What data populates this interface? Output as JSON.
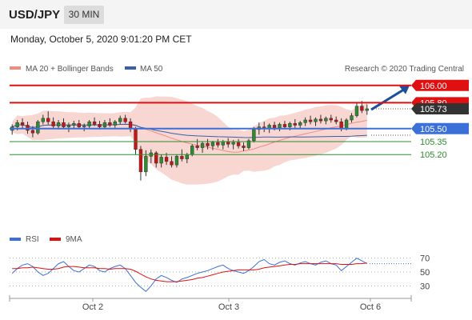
{
  "header": {
    "symbol": "USD/JPY",
    "timeframe": "30 MIN"
  },
  "datetime": "Monday, October 5, 2020 9:01:20 PM CET",
  "legend": {
    "bollinger": "MA 20 + Bollinger Bands",
    "ma50": "MA 50",
    "credit": "Research © 2020 Trading Central"
  },
  "rsi_legend": {
    "rsi": "RSI",
    "ma9": "9MA"
  },
  "colors": {
    "resistance": "#e01010",
    "support_main": "#3a70d8",
    "support_minor": "#2e8b2e",
    "price_tag_dark": "#333333",
    "bollinger_fill": "#f5c9c4",
    "ma20": "#f28a80",
    "ma50": "#3a5ea8",
    "candle_up": "#2e8b2e",
    "candle_down": "#c81414",
    "arrow": "#1f4e9a",
    "rsi": "#3a70d8",
    "rsi_ma9": "#e01010"
  },
  "chart_data": {
    "type": "candlestick",
    "symbol": "USD/JPY",
    "interval": "30 MIN",
    "x_ticks": [
      "Oct 2",
      "Oct 3",
      "Oct 6"
    ],
    "ylim": [
      104.6,
      106.1
    ],
    "levels": [
      {
        "label": "106.00",
        "value": 106.0,
        "kind": "resistance"
      },
      {
        "label": "105.80",
        "value": 105.8,
        "kind": "resistance"
      },
      {
        "label": "105.73",
        "value": 105.73,
        "kind": "last"
      },
      {
        "label": "105.50",
        "value": 105.5,
        "kind": "support"
      },
      {
        "label": "105.35",
        "value": 105.35,
        "kind": "support-minor"
      },
      {
        "label": "105.20",
        "value": 105.2,
        "kind": "support-minor"
      }
    ],
    "candles": [
      [
        105.48,
        105.55,
        105.43,
        105.52
      ],
      [
        105.52,
        105.6,
        105.48,
        105.57
      ],
      [
        105.57,
        105.62,
        105.5,
        105.54
      ],
      [
        105.54,
        105.58,
        105.44,
        105.48
      ],
      [
        105.48,
        105.53,
        105.4,
        105.45
      ],
      [
        105.45,
        105.6,
        105.43,
        105.58
      ],
      [
        105.58,
        105.66,
        105.55,
        105.62
      ],
      [
        105.62,
        105.7,
        105.55,
        105.58
      ],
      [
        105.58,
        105.63,
        105.5,
        105.53
      ],
      [
        105.53,
        105.6,
        105.49,
        105.57
      ],
      [
        105.57,
        105.62,
        105.5,
        105.52
      ],
      [
        105.52,
        105.57,
        105.46,
        105.54
      ],
      [
        105.54,
        105.59,
        105.5,
        105.56
      ],
      [
        105.56,
        105.6,
        105.5,
        105.52
      ],
      [
        105.52,
        105.56,
        105.47,
        105.53
      ],
      [
        105.53,
        105.6,
        105.5,
        105.58
      ],
      [
        105.58,
        105.63,
        105.53,
        105.55
      ],
      [
        105.55,
        105.59,
        105.49,
        105.52
      ],
      [
        105.52,
        105.6,
        105.5,
        105.57
      ],
      [
        105.57,
        105.62,
        105.52,
        105.54
      ],
      [
        105.54,
        105.6,
        105.51,
        105.58
      ],
      [
        105.58,
        105.65,
        105.55,
        105.62
      ],
      [
        105.62,
        105.66,
        105.56,
        105.58
      ],
      [
        105.58,
        105.62,
        105.46,
        105.5
      ],
      [
        105.5,
        105.52,
        105.2,
        105.26
      ],
      [
        105.26,
        105.3,
        104.9,
        105.0
      ],
      [
        105.0,
        105.25,
        104.95,
        105.18
      ],
      [
        105.18,
        105.26,
        105.1,
        105.22
      ],
      [
        105.22,
        105.24,
        105.05,
        105.1
      ],
      [
        105.1,
        105.2,
        105.05,
        105.17
      ],
      [
        105.17,
        105.22,
        105.08,
        105.12
      ],
      [
        105.12,
        105.18,
        105.05,
        105.08
      ],
      [
        105.08,
        105.2,
        105.05,
        105.18
      ],
      [
        105.18,
        105.26,
        105.12,
        105.15
      ],
      [
        105.15,
        105.22,
        105.1,
        105.2
      ],
      [
        105.2,
        105.32,
        105.18,
        105.3
      ],
      [
        105.3,
        105.38,
        105.25,
        105.28
      ],
      [
        105.28,
        105.35,
        105.22,
        105.33
      ],
      [
        105.33,
        105.38,
        105.26,
        105.3
      ],
      [
        105.3,
        105.36,
        105.25,
        105.34
      ],
      [
        105.34,
        105.38,
        105.28,
        105.31
      ],
      [
        105.31,
        105.37,
        105.26,
        105.35
      ],
      [
        105.35,
        105.39,
        105.28,
        105.32
      ],
      [
        105.32,
        105.37,
        105.26,
        105.34
      ],
      [
        105.34,
        105.38,
        105.27,
        105.3
      ],
      [
        105.3,
        105.34,
        105.24,
        105.28
      ],
      [
        105.28,
        105.38,
        105.26,
        105.36
      ],
      [
        105.36,
        105.52,
        105.34,
        105.49
      ],
      [
        105.49,
        105.57,
        105.43,
        105.52
      ],
      [
        105.52,
        105.58,
        105.46,
        105.5
      ],
      [
        105.5,
        105.56,
        105.45,
        105.54
      ],
      [
        105.54,
        105.58,
        105.48,
        105.51
      ],
      [
        105.51,
        105.57,
        105.47,
        105.55
      ],
      [
        105.55,
        105.59,
        105.49,
        105.52
      ],
      [
        105.52,
        105.58,
        105.48,
        105.56
      ],
      [
        105.56,
        105.61,
        105.51,
        105.54
      ],
      [
        105.54,
        105.59,
        105.5,
        105.57
      ],
      [
        105.57,
        105.63,
        105.53,
        105.6
      ],
      [
        105.6,
        105.65,
        105.55,
        105.58
      ],
      [
        105.58,
        105.63,
        105.53,
        105.61
      ],
      [
        105.61,
        105.66,
        105.56,
        105.59
      ],
      [
        105.59,
        105.64,
        105.55,
        105.62
      ],
      [
        105.62,
        105.66,
        105.57,
        105.6
      ],
      [
        105.6,
        105.64,
        105.55,
        105.58
      ],
      [
        105.58,
        105.62,
        105.47,
        105.5
      ],
      [
        105.5,
        105.62,
        105.48,
        105.6
      ],
      [
        105.6,
        105.68,
        105.57,
        105.65
      ],
      [
        105.65,
        105.8,
        105.63,
        105.76
      ],
      [
        105.76,
        105.82,
        105.68,
        105.71
      ],
      [
        105.71,
        105.78,
        105.66,
        105.73
      ]
    ],
    "rsi": {
      "type": "line",
      "name": "RSI",
      "ylim": [
        20,
        80
      ],
      "ticks": [
        30,
        50,
        70
      ],
      "values": [
        48,
        55,
        60,
        62,
        58,
        50,
        45,
        48,
        55,
        62,
        65,
        58,
        52,
        50,
        55,
        60,
        58,
        52,
        50,
        55,
        58,
        60,
        55,
        45,
        35,
        28,
        22,
        30,
        40,
        45,
        42,
        38,
        35,
        40,
        42,
        45,
        48,
        50,
        52,
        55,
        58,
        60,
        55,
        52,
        50,
        48,
        52,
        58,
        65,
        68,
        62,
        60,
        64,
        66,
        62,
        60,
        63,
        65,
        62,
        60,
        64,
        66,
        62,
        60,
        52,
        58,
        64,
        70,
        66,
        62
      ],
      "ma9": [
        55,
        55,
        56,
        56,
        57,
        56,
        55,
        54,
        54,
        55,
        57,
        58,
        58,
        57,
        56,
        56,
        56,
        55,
        55,
        54,
        55,
        55,
        55,
        54,
        51,
        47,
        43,
        40,
        38,
        37,
        36,
        36,
        36,
        37,
        38,
        39,
        41,
        42,
        44,
        46,
        48,
        50,
        51,
        52,
        53,
        53,
        53,
        53,
        54,
        56,
        57,
        58,
        59,
        60,
        61,
        61,
        62,
        62,
        62,
        62,
        62,
        62,
        62,
        62,
        61,
        61,
        61,
        62,
        62,
        63
      ]
    }
  }
}
